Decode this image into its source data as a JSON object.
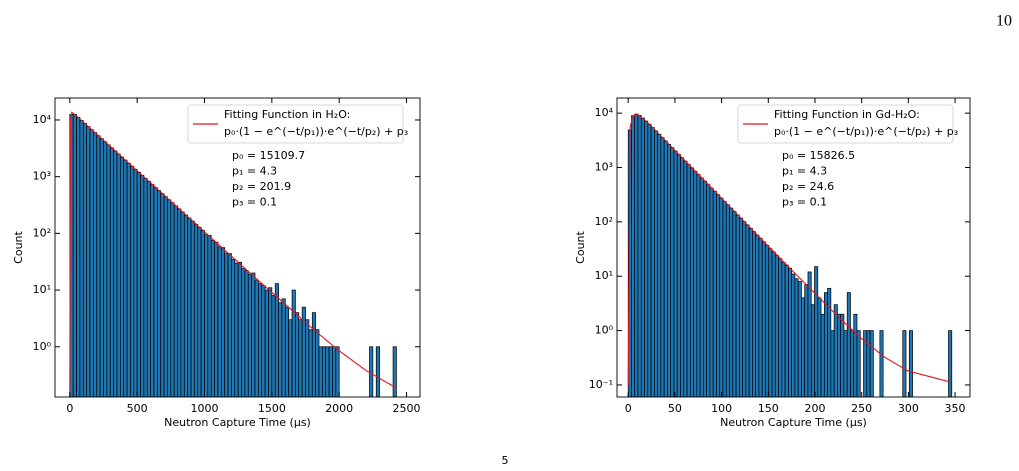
{
  "page_number": "10",
  "footnote_mark": "5",
  "chart_data": [
    {
      "type": "histogram",
      "xlabel": "Neutron Capture Time (μs)",
      "ylabel": "Count",
      "color": "#1f77b4",
      "edgecolor": "#000000",
      "ylog": true,
      "xlim": [
        -110,
        2600
      ],
      "ylim": [
        0.13,
        24400
      ],
      "xticks": [
        0,
        500,
        1000,
        1500,
        2000,
        2500
      ],
      "yticks": [
        {
          "value": 1,
          "label": "10⁰"
        },
        {
          "value": 10,
          "label": "10¹"
        },
        {
          "value": 100,
          "label": "10²"
        },
        {
          "value": 1000,
          "label": "10³"
        },
        {
          "value": 10000,
          "label": "10⁴"
        }
      ],
      "bins": [
        0,
        25,
        50,
        75,
        100,
        125,
        150,
        175,
        200,
        225,
        250,
        275,
        300,
        325,
        350,
        375,
        400,
        425,
        450,
        475,
        500,
        525,
        550,
        575,
        600,
        625,
        650,
        675,
        700,
        725,
        750,
        775,
        800,
        825,
        850,
        875,
        900,
        925,
        950,
        975,
        1000,
        1025,
        1050,
        1075,
        1100,
        1125,
        1150,
        1175,
        1200,
        1225,
        1250,
        1275,
        1300,
        1325,
        1350,
        1375,
        1400,
        1425,
        1450,
        1475,
        1500,
        1525,
        1550,
        1575,
        1600,
        1625,
        1650,
        1675,
        1700,
        1725,
        1750,
        1775,
        1800,
        1825,
        1850,
        1875,
        1900,
        1925,
        1950,
        1975,
        2000,
        2025,
        2050,
        2075,
        2100,
        2125,
        2150,
        2175,
        2200,
        2225,
        2250,
        2275,
        2300,
        2325,
        2350,
        2375,
        2400,
        2425
      ],
      "values": [
        12500,
        12548,
        11086,
        9795,
        8654,
        7646,
        6755,
        5968,
        5273,
        4659,
        4116,
        3637,
        3213,
        2839,
        2508,
        2216,
        1958,
        1730,
        1528,
        1350,
        1193,
        1054,
        931,
        823,
        727,
        642,
        567,
        501,
        443,
        391,
        346,
        305,
        270,
        238,
        211,
        186,
        164,
        145,
        128,
        113,
        95,
        92,
        75,
        70,
        58,
        56,
        45,
        44,
        35,
        30,
        31,
        24,
        22,
        19,
        20,
        15,
        13,
        12,
        10,
        11,
        8,
        13,
        6,
        7,
        5,
        3,
        10,
        4,
        3,
        5,
        3,
        2,
        4,
        2,
        1,
        1,
        1,
        1,
        1,
        1,
        0,
        0,
        0,
        0,
        0,
        0,
        0,
        0,
        0,
        1,
        0,
        1,
        0,
        0,
        0,
        0,
        1
      ],
      "fit": {
        "name": "Fitting Function in H₂O:",
        "formula": "p₀·(1 − e^(−t/p₁))·e^(−t/p₂) + p₃",
        "color": "#e8141c",
        "x": [
          0,
          5,
          15,
          50,
          200,
          400,
          600,
          800,
          1000,
          1200,
          1400,
          1600,
          1800,
          2000,
          2200,
          2420
        ],
        "values": [
          0.1,
          10132,
          13600,
          11796,
          5611,
          2083,
          774,
          287,
          106.7,
          39.6,
          14.7,
          5.6,
          2.1,
          0.85,
          0.38,
          0.19
        ]
      },
      "params": [
        "p₀ = 15109.7",
        "p₁ = 4.3",
        "p₂ = 201.9",
        "p₃ = 0.1"
      ]
    },
    {
      "type": "histogram",
      "xlabel": "Neutron Capture Time (μs)",
      "ylabel": "Count",
      "color": "#1f77b4",
      "edgecolor": "#000000",
      "ylog": true,
      "xlim": [
        -12,
        366
      ],
      "ylim": [
        0.06,
        19000
      ],
      "xticks": [
        0,
        50,
        100,
        150,
        200,
        250,
        300,
        350
      ],
      "yticks": [
        {
          "value": 0.1,
          "label": "10⁻¹"
        },
        {
          "value": 1,
          "label": "10⁰"
        },
        {
          "value": 10,
          "label": "10¹"
        },
        {
          "value": 100,
          "label": "10²"
        },
        {
          "value": 1000,
          "label": "10³"
        },
        {
          "value": 10000,
          "label": "10⁴"
        }
      ],
      "bins": [
        0,
        3.5,
        7,
        10.5,
        14,
        17.5,
        21,
        24.5,
        28,
        31.5,
        35,
        38.5,
        42,
        45.5,
        49,
        52.5,
        56,
        59.5,
        63,
        66.5,
        70,
        73.5,
        77,
        80.5,
        84,
        87.5,
        91,
        94.5,
        98,
        101.5,
        105,
        108.5,
        112,
        115.5,
        119,
        122.5,
        126,
        129.5,
        133,
        136.5,
        140,
        143.5,
        147,
        150.5,
        154,
        157.5,
        161,
        164.5,
        168,
        171.5,
        175,
        178.5,
        182,
        185.5,
        189,
        192.5,
        196,
        199.5,
        203,
        206.5,
        210,
        213.5,
        217,
        220.5,
        224,
        227.5,
        231,
        234.5,
        238,
        241.5,
        245,
        248.5,
        252,
        255.5,
        259,
        262.5,
        266,
        269.5,
        273,
        276.5,
        280,
        283.5,
        287,
        290.5,
        294,
        297.5,
        301,
        304.5,
        308,
        311.5,
        315,
        318.5,
        322,
        325.5,
        329,
        332.5,
        336,
        339.5,
        343,
        346.5
      ],
      "values": [
        4900,
        9015,
        9630,
        9065,
        8120,
        7147,
        6250,
        5430,
        4710,
        4085,
        3543,
        3073,
        2666,
        2312,
        2006,
        1740,
        1509,
        1309,
        1135,
        985,
        854,
        741,
        643,
        557,
        483,
        419,
        364,
        315,
        274,
        237,
        206,
        179,
        155,
        134,
        117,
        101,
        88,
        76,
        66,
        57,
        50,
        43,
        37,
        32,
        28,
        24,
        21,
        18,
        16,
        14,
        11,
        9,
        8,
        4,
        7,
        12,
        3,
        15,
        4,
        2,
        5,
        6,
        1,
        3,
        2,
        2,
        1,
        5,
        1,
        2,
        1,
        0,
        1,
        1,
        1,
        0,
        0,
        1,
        0,
        0,
        0,
        0,
        0,
        0,
        1,
        0,
        1,
        0,
        0,
        0,
        0,
        0,
        0,
        0,
        0,
        0,
        0,
        0,
        1
      ],
      "fit": {
        "name": "Fitting Function in Gd-H₂O:",
        "formula": "p₀·(1 − e^(−t/p₁))·e^(−t/p₂) + p₃",
        "color": "#e8141c",
        "x": [
          0,
          2,
          5,
          10,
          20,
          40,
          60,
          80,
          100,
          125,
          150,
          175,
          200,
          225,
          250,
          275,
          300,
          345
        ],
        "values": [
          0.1,
          5430,
          8880,
          9510,
          6950,
          3113,
          1382,
          613,
          272,
          98.4,
          35.7,
          13.0,
          4.8,
          1.79,
          0.71,
          0.32,
          0.18,
          0.113
        ]
      },
      "params": [
        "p₀ = 15826.5",
        "p₁ = 4.3",
        "p₂ = 24.6",
        "p₃ = 0.1"
      ]
    }
  ]
}
